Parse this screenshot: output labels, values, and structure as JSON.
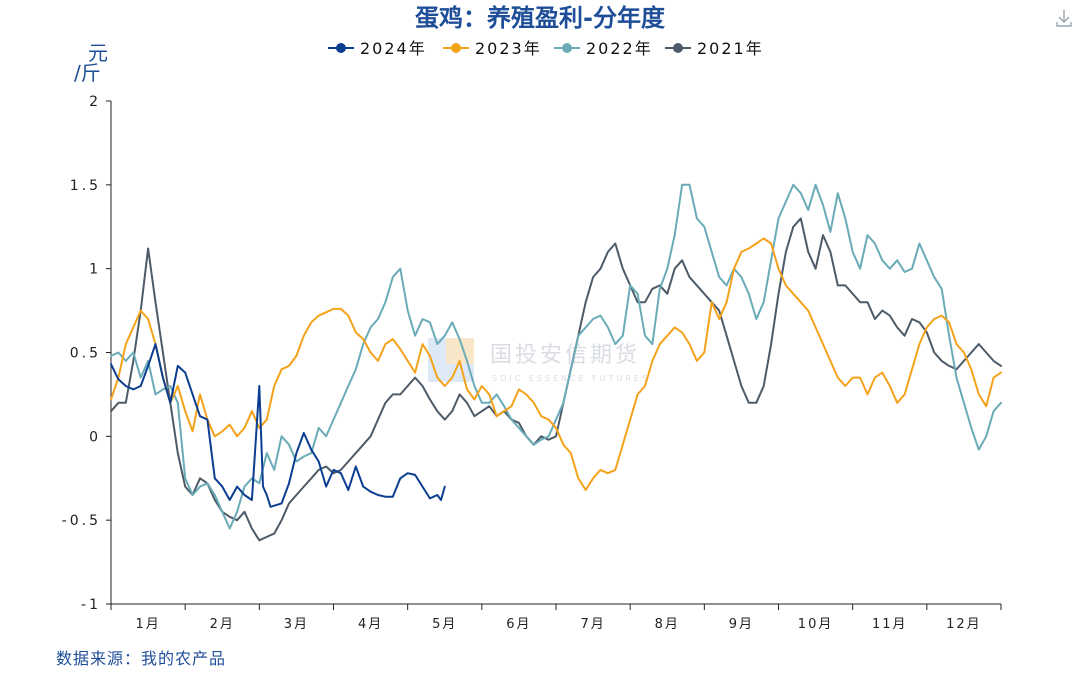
{
  "chart_data": {
    "type": "line",
    "title": "蛋鸡：养殖盈利-分年度",
    "unit": "元/斤",
    "xlabel": "",
    "ylabel": "元/斤",
    "ylim": [
      -1,
      2
    ],
    "yticks": [
      -1,
      -0.5,
      0,
      0.5,
      1,
      1.5,
      2
    ],
    "ytick_labels": [
      "-1",
      "-0.5",
      "0",
      "0.5",
      "1",
      "1.5",
      "2"
    ],
    "xlim": [
      0,
      12
    ],
    "x_tick_labels": [
      "1月",
      "2月",
      "3月",
      "4月",
      "5月",
      "6月",
      "7月",
      "8月",
      "9月",
      "10月",
      "11月",
      "12月"
    ],
    "x_unit": "month (fractional, 0 = Jan 1, 12 = Dec 31)",
    "grid": false,
    "legend_position": "top-center",
    "series": [
      {
        "name": "2024年",
        "color": "#0b3d91",
        "x": [
          0.0,
          0.1,
          0.2,
          0.3,
          0.4,
          0.5,
          0.6,
          0.7,
          0.8,
          0.9,
          1.0,
          1.1,
          1.2,
          1.3,
          1.4,
          1.5,
          1.6,
          1.7,
          1.8,
          1.9,
          2.0,
          2.05,
          2.1,
          2.15,
          2.3,
          2.4,
          2.5,
          2.6,
          2.7,
          2.8,
          2.9,
          3.0,
          3.1,
          3.2,
          3.3,
          3.4,
          3.5,
          3.6,
          3.7,
          3.8,
          3.9,
          4.0,
          4.1,
          4.2,
          4.3,
          4.4,
          4.45,
          4.5
        ],
        "values": [
          0.43,
          0.34,
          0.3,
          0.28,
          0.3,
          0.42,
          0.55,
          0.35,
          0.2,
          0.42,
          0.38,
          0.25,
          0.12,
          0.1,
          -0.25,
          -0.3,
          -0.38,
          -0.3,
          -0.35,
          -0.38,
          0.3,
          -0.3,
          -0.35,
          -0.42,
          -0.4,
          -0.28,
          -0.1,
          0.02,
          -0.08,
          -0.15,
          -0.3,
          -0.2,
          -0.22,
          -0.32,
          -0.18,
          -0.3,
          -0.33,
          -0.35,
          -0.36,
          -0.36,
          -0.25,
          -0.22,
          -0.23,
          -0.3,
          -0.37,
          -0.35,
          -0.38,
          -0.3
        ]
      },
      {
        "name": "2023年",
        "color": "#f5a21b",
        "x": [
          0.0,
          0.1,
          0.2,
          0.3,
          0.4,
          0.5,
          0.6,
          0.7,
          0.8,
          0.9,
          1.0,
          1.1,
          1.2,
          1.3,
          1.4,
          1.5,
          1.6,
          1.7,
          1.8,
          1.9,
          2.0,
          2.1,
          2.2,
          2.3,
          2.4,
          2.5,
          2.6,
          2.7,
          2.8,
          2.9,
          3.0,
          3.1,
          3.2,
          3.3,
          3.4,
          3.5,
          3.6,
          3.7,
          3.8,
          3.9,
          4.0,
          4.1,
          4.2,
          4.3,
          4.4,
          4.5,
          4.6,
          4.7,
          4.8,
          4.9,
          5.0,
          5.1,
          5.2,
          5.3,
          5.4,
          5.5,
          5.6,
          5.7,
          5.8,
          5.9,
          6.0,
          6.1,
          6.2,
          6.3,
          6.4,
          6.5,
          6.6,
          6.7,
          6.8,
          6.9,
          7.0,
          7.1,
          7.2,
          7.3,
          7.4,
          7.5,
          7.6,
          7.7,
          7.8,
          7.9,
          8.0,
          8.1,
          8.2,
          8.3,
          8.4,
          8.5,
          8.6,
          8.7,
          8.8,
          8.9,
          9.0,
          9.1,
          9.2,
          9.3,
          9.4,
          9.5,
          9.6,
          9.7,
          9.8,
          9.9,
          10.0,
          10.1,
          10.2,
          10.3,
          10.4,
          10.5,
          10.6,
          10.7,
          10.8,
          10.9,
          11.0,
          11.1,
          11.2,
          11.3,
          11.4,
          11.5,
          11.6,
          11.7,
          11.8,
          11.9,
          12.0
        ],
        "values": [
          0.22,
          0.35,
          0.55,
          0.65,
          0.75,
          0.7,
          0.55,
          0.35,
          0.2,
          0.3,
          0.15,
          0.03,
          0.25,
          0.1,
          0.0,
          0.03,
          0.07,
          0.0,
          0.05,
          0.15,
          0.05,
          0.1,
          0.3,
          0.4,
          0.42,
          0.48,
          0.6,
          0.68,
          0.72,
          0.74,
          0.76,
          0.76,
          0.72,
          0.62,
          0.58,
          0.5,
          0.45,
          0.55,
          0.58,
          0.52,
          0.45,
          0.38,
          0.55,
          0.48,
          0.35,
          0.3,
          0.35,
          0.45,
          0.28,
          0.22,
          0.3,
          0.25,
          0.12,
          0.15,
          0.18,
          0.28,
          0.25,
          0.2,
          0.12,
          0.1,
          0.05,
          -0.05,
          -0.1,
          -0.25,
          -0.32,
          -0.25,
          -0.2,
          -0.22,
          -0.2,
          -0.05,
          0.1,
          0.25,
          0.3,
          0.45,
          0.55,
          0.6,
          0.65,
          0.62,
          0.55,
          0.45,
          0.5,
          0.8,
          0.7,
          0.8,
          1.0,
          1.1,
          1.12,
          1.15,
          1.18,
          1.15,
          1.0,
          0.9,
          0.85,
          0.8,
          0.75,
          0.65,
          0.55,
          0.45,
          0.35,
          0.3,
          0.35,
          0.35,
          0.25,
          0.35,
          0.38,
          0.3,
          0.2,
          0.25,
          0.4,
          0.55,
          0.65,
          0.7,
          0.72,
          0.68,
          0.55,
          0.5,
          0.4,
          0.25,
          0.18,
          0.35,
          0.38
        ]
      },
      {
        "name": "2022年",
        "color": "#6aabb8",
        "x": [
          0.0,
          0.1,
          0.2,
          0.3,
          0.4,
          0.5,
          0.6,
          0.7,
          0.8,
          0.9,
          1.0,
          1.1,
          1.2,
          1.3,
          1.4,
          1.5,
          1.6,
          1.7,
          1.8,
          1.9,
          2.0,
          2.1,
          2.2,
          2.3,
          2.4,
          2.5,
          2.6,
          2.7,
          2.8,
          2.9,
          3.0,
          3.1,
          3.2,
          3.3,
          3.4,
          3.5,
          3.6,
          3.7,
          3.8,
          3.9,
          4.0,
          4.1,
          4.2,
          4.3,
          4.4,
          4.5,
          4.6,
          4.7,
          4.8,
          4.9,
          5.0,
          5.1,
          5.2,
          5.3,
          5.4,
          5.5,
          5.6,
          5.7,
          5.8,
          5.9,
          6.0,
          6.1,
          6.2,
          6.3,
          6.4,
          6.5,
          6.6,
          6.7,
          6.8,
          6.9,
          7.0,
          7.1,
          7.2,
          7.3,
          7.4,
          7.5,
          7.6,
          7.7,
          7.8,
          7.9,
          8.0,
          8.1,
          8.2,
          8.3,
          8.4,
          8.5,
          8.6,
          8.7,
          8.8,
          8.9,
          9.0,
          9.1,
          9.2,
          9.3,
          9.4,
          9.5,
          9.6,
          9.7,
          9.8,
          9.9,
          10.0,
          10.1,
          10.2,
          10.3,
          10.4,
          10.5,
          10.6,
          10.7,
          10.8,
          10.9,
          11.0,
          11.1,
          11.2,
          11.3,
          11.4,
          11.5,
          11.6,
          11.7,
          11.8,
          11.9,
          12.0
        ],
        "values": [
          0.48,
          0.5,
          0.45,
          0.5,
          0.35,
          0.45,
          0.25,
          0.28,
          0.3,
          0.2,
          -0.25,
          -0.35,
          -0.3,
          -0.28,
          -0.35,
          -0.45,
          -0.55,
          -0.45,
          -0.3,
          -0.25,
          -0.28,
          -0.1,
          -0.2,
          0.0,
          -0.05,
          -0.15,
          -0.12,
          -0.1,
          0.05,
          0.0,
          0.1,
          0.2,
          0.3,
          0.4,
          0.55,
          0.65,
          0.7,
          0.8,
          0.95,
          1.0,
          0.75,
          0.6,
          0.7,
          0.68,
          0.55,
          0.6,
          0.68,
          0.58,
          0.45,
          0.3,
          0.2,
          0.2,
          0.25,
          0.18,
          0.1,
          0.05,
          0.0,
          -0.05,
          -0.02,
          0.0,
          0.1,
          0.2,
          0.4,
          0.6,
          0.65,
          0.7,
          0.72,
          0.65,
          0.55,
          0.6,
          0.9,
          0.85,
          0.6,
          0.55,
          0.88,
          1.0,
          1.2,
          1.5,
          1.5,
          1.3,
          1.25,
          1.1,
          0.95,
          0.9,
          1.0,
          0.95,
          0.85,
          0.7,
          0.8,
          1.05,
          1.3,
          1.4,
          1.5,
          1.45,
          1.35,
          1.5,
          1.38,
          1.22,
          1.45,
          1.3,
          1.1,
          1.0,
          1.2,
          1.15,
          1.05,
          1.0,
          1.05,
          0.98,
          1.0,
          1.15,
          1.05,
          0.95,
          0.88,
          0.6,
          0.35,
          0.2,
          0.05,
          -0.08,
          0.0,
          0.15,
          0.2
        ]
      },
      {
        "name": "2021年",
        "color": "#4d5b69",
        "x": [
          0.0,
          0.1,
          0.2,
          0.3,
          0.4,
          0.5,
          0.6,
          0.7,
          0.8,
          0.9,
          1.0,
          1.1,
          1.2,
          1.3,
          1.4,
          1.5,
          1.6,
          1.7,
          1.8,
          1.9,
          2.0,
          2.1,
          2.2,
          2.3,
          2.4,
          2.5,
          2.6,
          2.7,
          2.8,
          2.9,
          3.0,
          3.1,
          3.2,
          3.3,
          3.4,
          3.5,
          3.6,
          3.7,
          3.8,
          3.9,
          4.0,
          4.1,
          4.2,
          4.3,
          4.4,
          4.5,
          4.6,
          4.7,
          4.8,
          4.9,
          5.0,
          5.1,
          5.2,
          5.3,
          5.4,
          5.5,
          5.6,
          5.7,
          5.8,
          5.9,
          6.0,
          6.1,
          6.2,
          6.3,
          6.4,
          6.5,
          6.6,
          6.7,
          6.8,
          6.9,
          7.0,
          7.1,
          7.2,
          7.3,
          7.4,
          7.5,
          7.6,
          7.7,
          7.8,
          7.9,
          8.0,
          8.1,
          8.2,
          8.3,
          8.4,
          8.5,
          8.6,
          8.7,
          8.8,
          8.9,
          9.0,
          9.1,
          9.2,
          9.3,
          9.4,
          9.5,
          9.6,
          9.7,
          9.8,
          9.9,
          10.0,
          10.1,
          10.2,
          10.3,
          10.4,
          10.5,
          10.6,
          10.7,
          10.8,
          10.9,
          11.0,
          11.1,
          11.2,
          11.3,
          11.4,
          11.5,
          11.6,
          11.7,
          11.8,
          11.9,
          12.0
        ],
        "values": [
          0.15,
          0.2,
          0.2,
          0.45,
          0.75,
          1.12,
          0.8,
          0.5,
          0.2,
          -0.1,
          -0.3,
          -0.35,
          -0.25,
          -0.28,
          -0.38,
          -0.45,
          -0.48,
          -0.5,
          -0.45,
          -0.55,
          -0.62,
          -0.6,
          -0.58,
          -0.5,
          -0.4,
          -0.35,
          -0.3,
          -0.25,
          -0.2,
          -0.18,
          -0.22,
          -0.2,
          -0.15,
          -0.1,
          -0.05,
          0.0,
          0.1,
          0.2,
          0.25,
          0.25,
          0.3,
          0.35,
          0.3,
          0.22,
          0.15,
          0.1,
          0.15,
          0.25,
          0.2,
          0.12,
          0.15,
          0.18,
          0.12,
          0.15,
          0.1,
          0.08,
          0.0,
          -0.05,
          0.0,
          -0.02,
          0.0,
          0.2,
          0.4,
          0.6,
          0.8,
          0.95,
          1.0,
          1.1,
          1.15,
          1.0,
          0.9,
          0.8,
          0.8,
          0.88,
          0.9,
          0.85,
          1.0,
          1.05,
          0.95,
          0.9,
          0.85,
          0.8,
          0.75,
          0.6,
          0.45,
          0.3,
          0.2,
          0.2,
          0.3,
          0.55,
          0.85,
          1.1,
          1.25,
          1.3,
          1.1,
          1.0,
          1.2,
          1.1,
          0.9,
          0.9,
          0.85,
          0.8,
          0.8,
          0.7,
          0.75,
          0.72,
          0.65,
          0.6,
          0.7,
          0.68,
          0.62,
          0.5,
          0.45,
          0.42,
          0.4,
          0.45,
          0.5,
          0.55,
          0.5,
          0.45,
          0.42
        ]
      }
    ]
  },
  "source": "数据来源：我的农产品",
  "watermark": {
    "name": "国投安信期货",
    "subtitle": "SDIC ESSENCE FUTURES"
  },
  "download_icon": "download-icon"
}
